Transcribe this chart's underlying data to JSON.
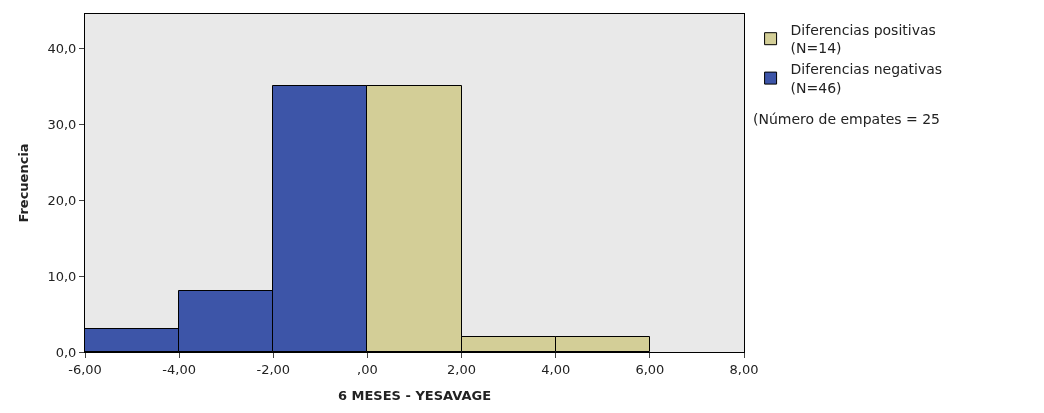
{
  "chart_data": {
    "type": "histogram",
    "xlabel": "6 MESES - YESAVAGE",
    "ylabel": "Frecuencia",
    "bins": [
      -6,
      -4,
      -2,
      0,
      2,
      4,
      6
    ],
    "series": [
      {
        "name": "Diferencias positivas\n(N=14)",
        "color": "#d3ce97",
        "values": [
          null,
          null,
          null,
          35,
          2,
          2
        ]
      },
      {
        "name": "Diferencias negativas\n(N=46)",
        "color": "#3d55a8",
        "values": [
          3,
          8,
          35,
          null,
          null,
          null
        ]
      }
    ],
    "annotations": [
      "(Número de empates = 25"
    ],
    "xlim": [
      -6,
      8
    ],
    "ylim": [
      0,
      44.5
    ],
    "xticks": [
      {
        "value": -6,
        "label": "-6,00"
      },
      {
        "value": -4,
        "label": "-4,00"
      },
      {
        "value": -2,
        "label": "-2,00"
      },
      {
        "value": 0,
        "label": ",00"
      },
      {
        "value": 2,
        "label": "2,00"
      },
      {
        "value": 4,
        "label": "4,00"
      },
      {
        "value": 6,
        "label": "6,00"
      },
      {
        "value": 8,
        "label": "8,00"
      }
    ],
    "yticks": [
      {
        "value": 0,
        "label": "0,0"
      },
      {
        "value": 10,
        "label": "10,0"
      },
      {
        "value": 20,
        "label": "20,0"
      },
      {
        "value": 30,
        "label": "30,0"
      },
      {
        "value": 40,
        "label": "40,0"
      }
    ],
    "legend": "top right",
    "grid": false
  }
}
